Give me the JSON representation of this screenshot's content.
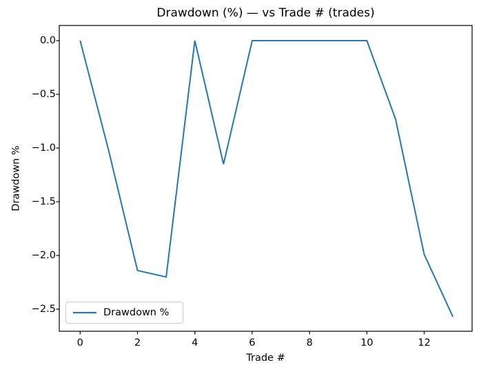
{
  "title": "Drawdown (%) — vs Trade # (trades)",
  "axes": {
    "x": {
      "label": "Trade #",
      "tick_values": [
        0,
        2,
        4,
        6,
        8,
        10,
        12
      ],
      "tick_labels": [
        "0",
        "2",
        "4",
        "6",
        "8",
        "10",
        "12"
      ]
    },
    "y": {
      "label": "Drawdown %",
      "tick_values": [
        0,
        -0.5,
        -1,
        -1.5,
        -2,
        -2.5
      ],
      "tick_labels": [
        "0.0",
        "−0.5",
        "−1.0",
        "−1.5",
        "−2.0",
        "−2.5"
      ]
    }
  },
  "legend": {
    "entries": [
      {
        "label": "Drawdown %",
        "color": "#1f77b4"
      }
    ]
  },
  "colors": {
    "line": "#1f77b4",
    "axes": "#000000",
    "text": "#000000",
    "legend_border": "#cccccc",
    "background": "#ffffff"
  },
  "chart_data": {
    "type": "line",
    "title": "Drawdown (%) — vs Trade # (trades)",
    "xlabel": "Trade #",
    "ylabel": "Drawdown %",
    "x": [
      0,
      1,
      2,
      3,
      4,
      5,
      6,
      7,
      8,
      9,
      10,
      11,
      12,
      13
    ],
    "series": [
      {
        "name": "Drawdown %",
        "color": "#1f77b4",
        "values": [
          0.0,
          -1.03,
          -2.14,
          -2.2,
          0.0,
          -1.15,
          0.0,
          0.0,
          0.0,
          0.0,
          0.0,
          -0.73,
          -1.99,
          -2.57
        ]
      }
    ],
    "xlim": [
      -0.65,
      13.65
    ],
    "ylim": [
      -2.7,
      0.13
    ],
    "grid": false,
    "legend_position": "lower left"
  }
}
